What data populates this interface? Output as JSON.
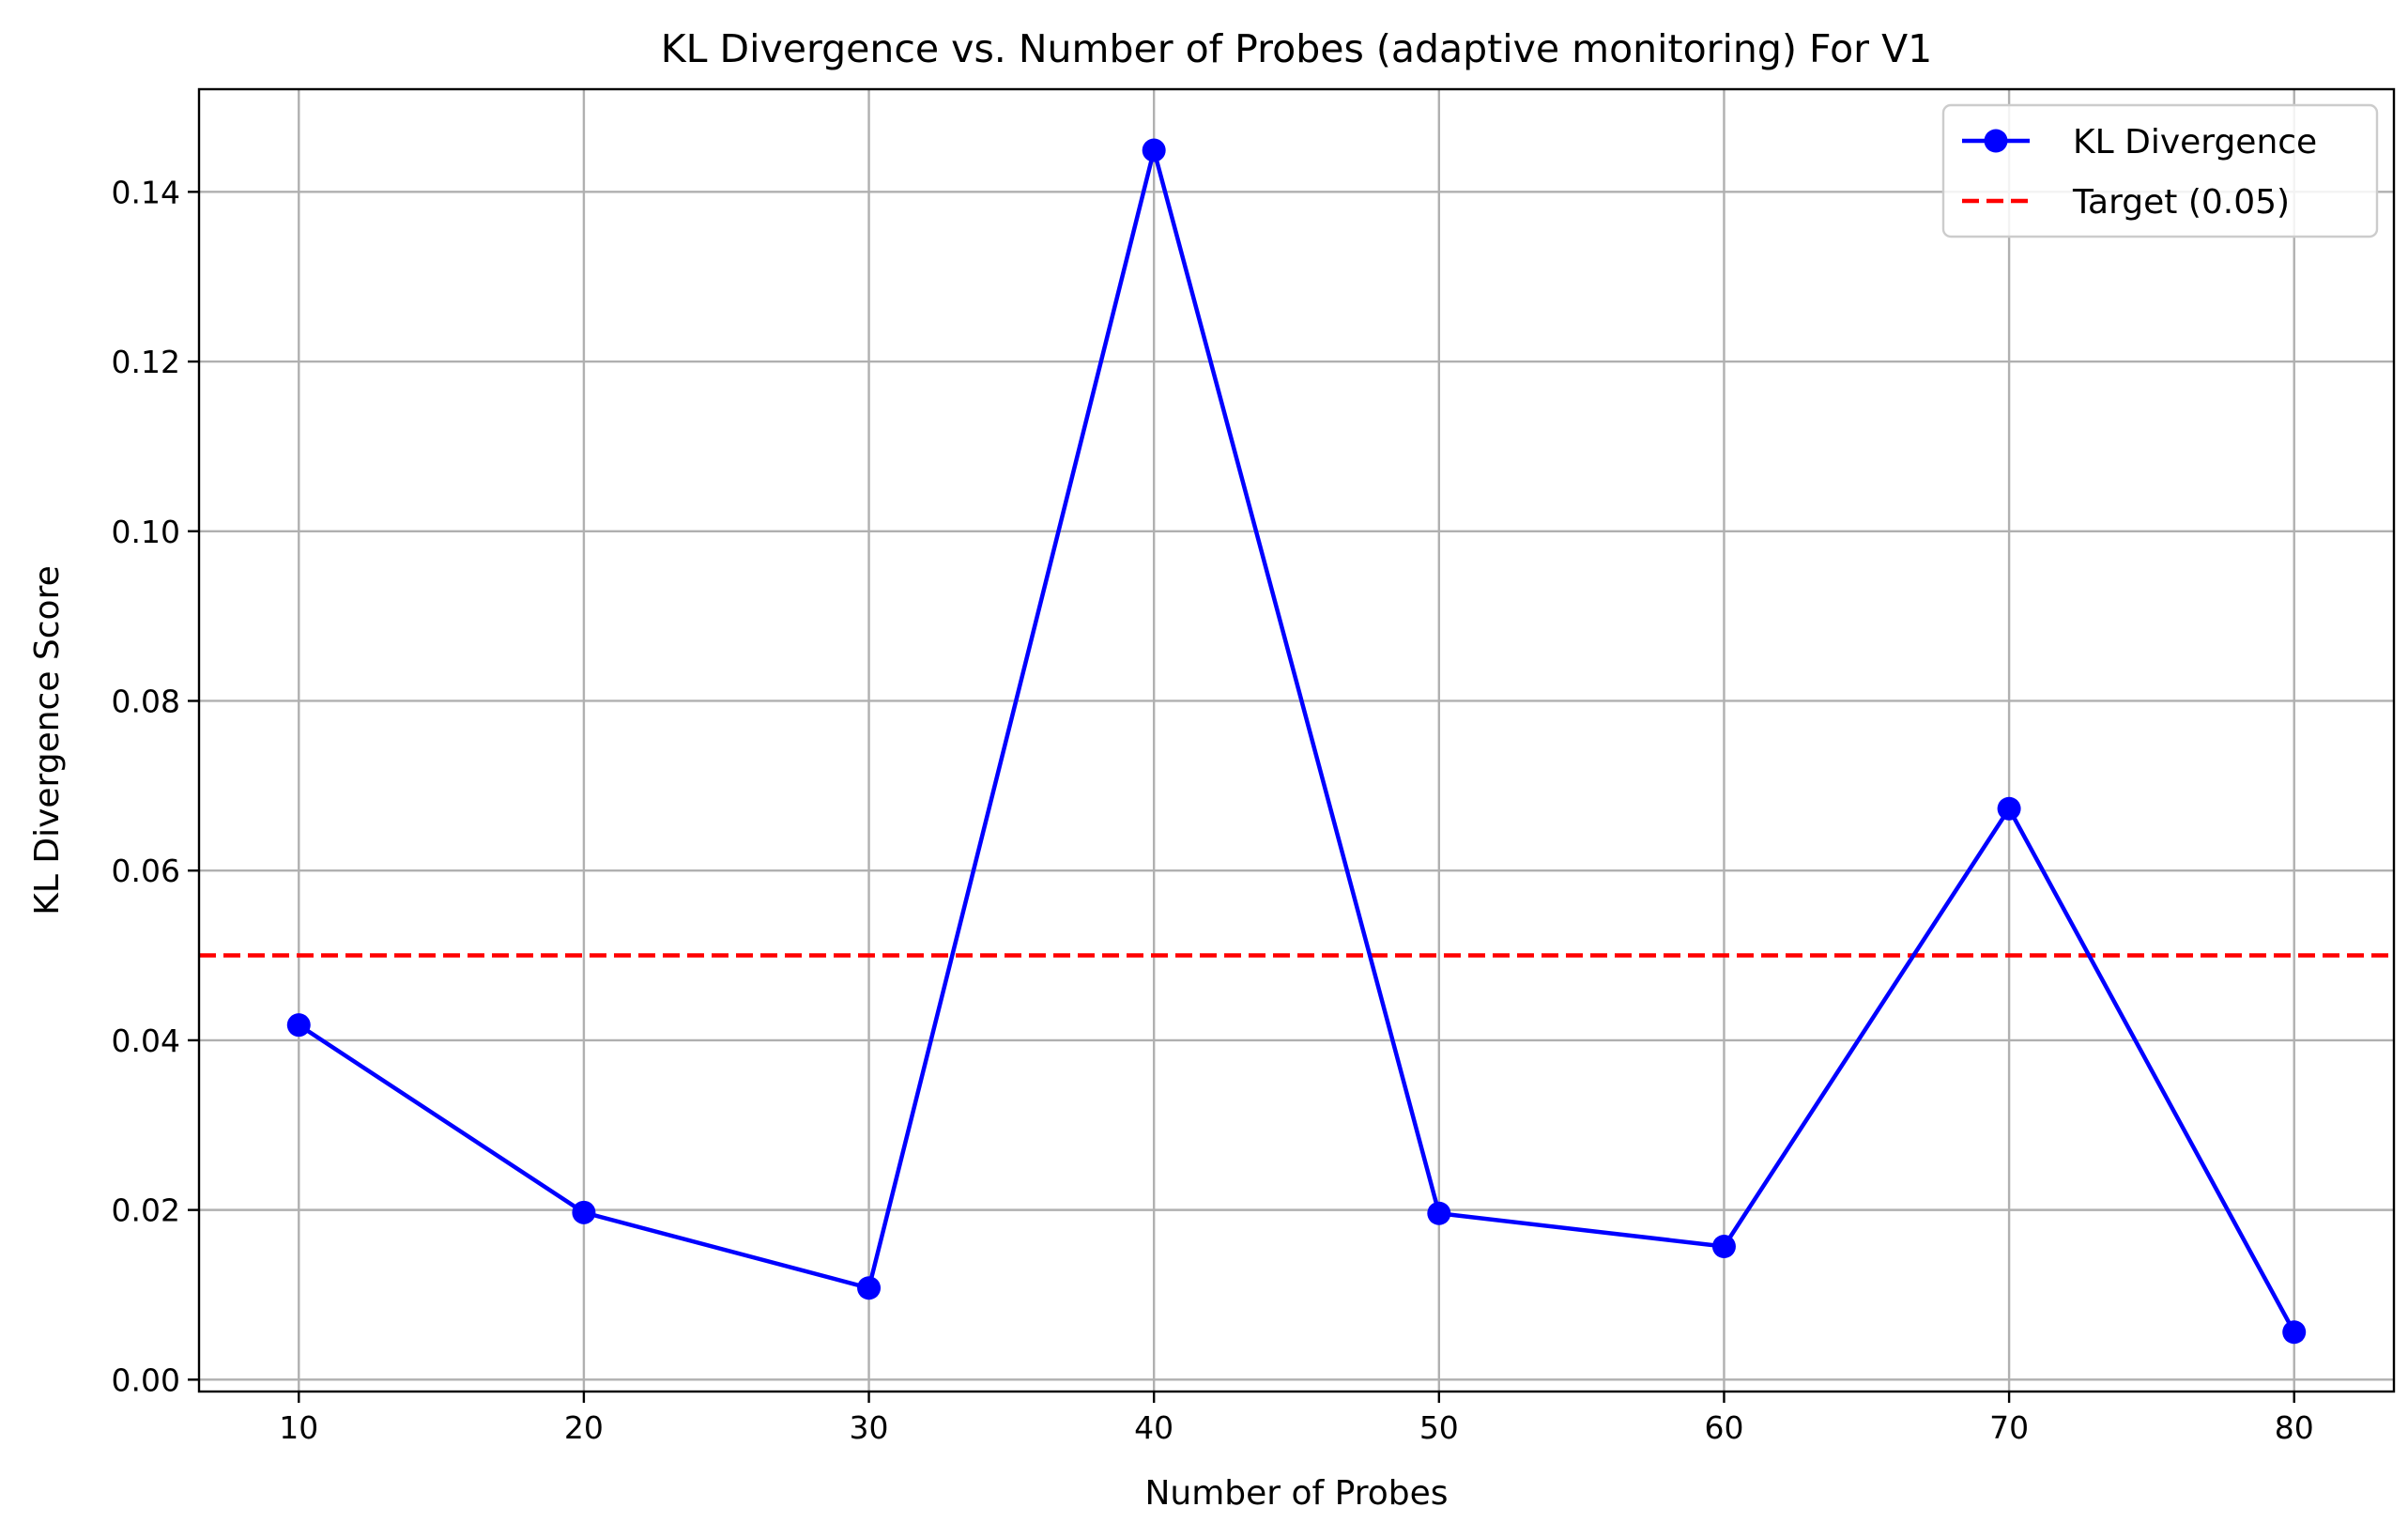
{
  "chart_data": {
    "type": "line",
    "title": "KL Divergence vs. Number of Probes (adaptive monitoring) For V1",
    "xlabel": "Number of Probes",
    "ylabel": "KL Divergence Score",
    "x": [
      10,
      20,
      30,
      40,
      50,
      60,
      70,
      80
    ],
    "series": [
      {
        "name": "KL Divergence",
        "values": [
          0.0418,
          0.0197,
          0.0108,
          0.1449,
          0.0196,
          0.0157,
          0.0673,
          0.0056
        ],
        "color": "#0000ff",
        "marker": "circle"
      }
    ],
    "reference_lines": [
      {
        "name": "Target (0.05)",
        "y": 0.05,
        "color": "#ff0000",
        "style": "dashed"
      }
    ],
    "xlim": [
      6.5,
      83.5
    ],
    "ylim": [
      -0.0014,
      0.1521
    ],
    "x_ticks": [
      10,
      20,
      30,
      40,
      50,
      60,
      70,
      80
    ],
    "x_tick_labels": [
      "10",
      "20",
      "30",
      "40",
      "50",
      "60",
      "70",
      "80"
    ],
    "y_ticks": [
      0.0,
      0.02,
      0.04,
      0.06,
      0.08,
      0.1,
      0.12,
      0.14
    ],
    "y_tick_labels": [
      "0.00",
      "0.02",
      "0.04",
      "0.06",
      "0.08",
      "0.10",
      "0.12",
      "0.14"
    ],
    "grid": true,
    "legend": "top-right"
  }
}
